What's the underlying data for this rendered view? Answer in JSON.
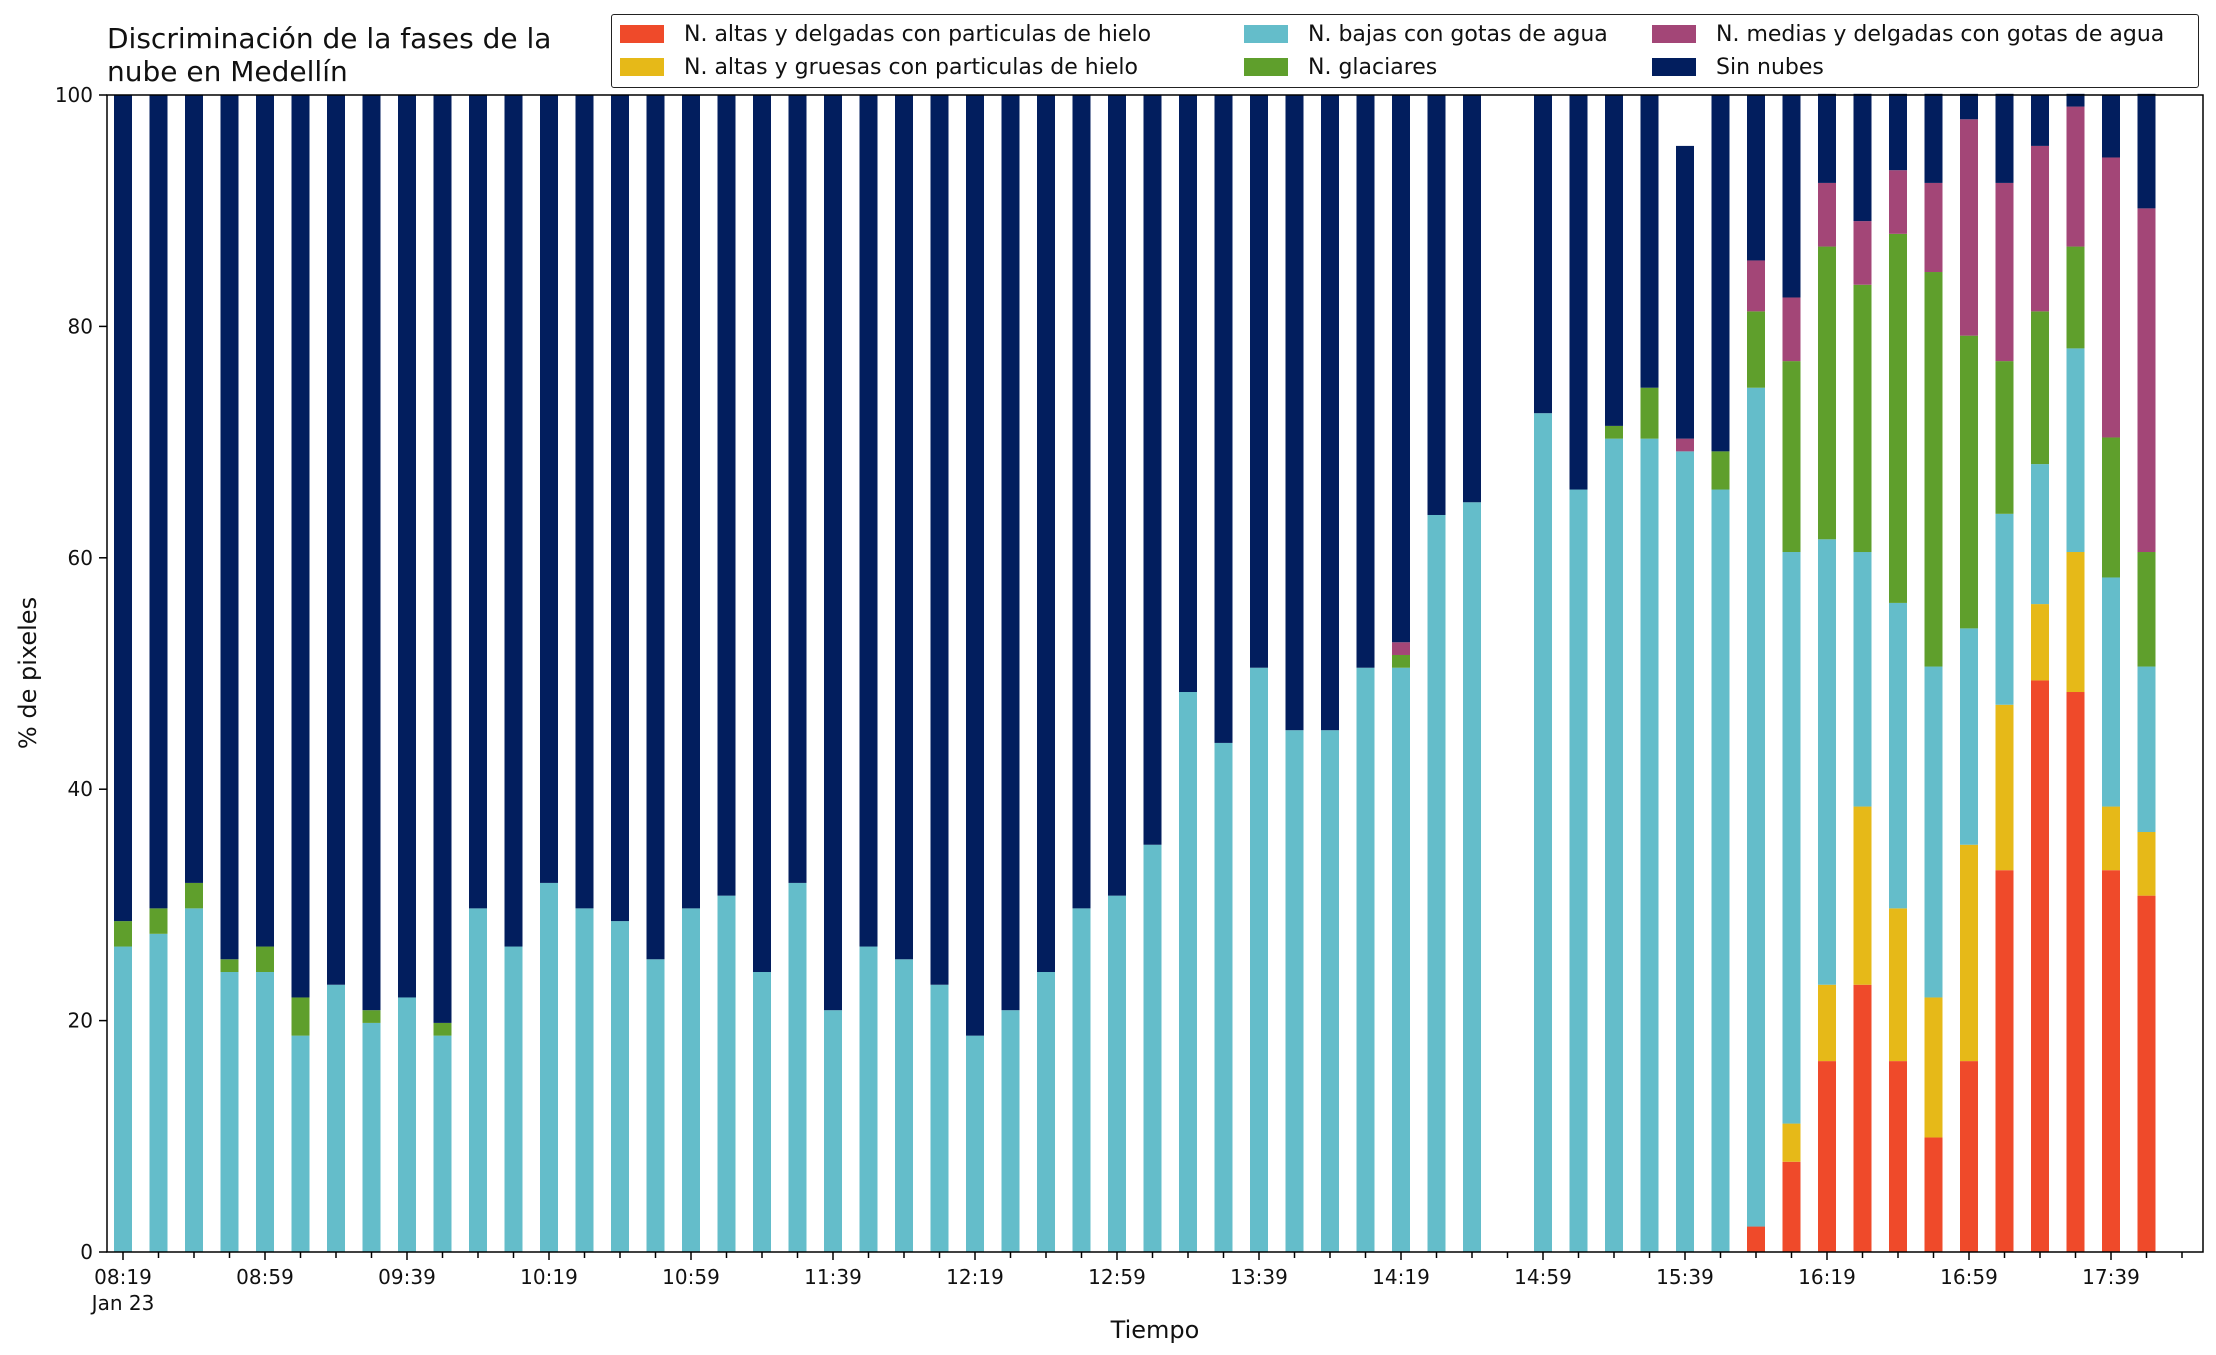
{
  "chart_data": {
    "type": "bar",
    "stacked": true,
    "title_lines": [
      "Discriminación de la fases de la",
      "nube en Medellín"
    ],
    "xlabel": "Tiempo",
    "ylabel": "% de pixeles",
    "ylim": [
      0,
      100
    ],
    "yticks": [
      0,
      20,
      40,
      60,
      80,
      100
    ],
    "grid": false,
    "legend_position": "top-right",
    "x_start": "08:19",
    "x_interval_minutes": 10,
    "xtick_labels": [
      "08:19",
      "08:59",
      "09:39",
      "10:19",
      "10:59",
      "11:39",
      "12:19",
      "12:59",
      "13:39",
      "14:19",
      "14:59",
      "15:39",
      "16:19",
      "16:59",
      "17:39"
    ],
    "xtick_sublabel": "Jan 23",
    "categories": [
      "08:19",
      "08:29",
      "08:39",
      "08:49",
      "08:59",
      "09:09",
      "09:19",
      "09:29",
      "09:39",
      "09:49",
      "09:59",
      "10:09",
      "10:19",
      "10:29",
      "10:39",
      "10:49",
      "10:59",
      "11:09",
      "11:19",
      "11:29",
      "11:39",
      "11:49",
      "11:59",
      "12:09",
      "12:19",
      "12:29",
      "12:39",
      "12:49",
      "12:59",
      "13:09",
      "13:19",
      "13:29",
      "13:39",
      "13:49",
      "13:59",
      "14:09",
      "14:19",
      "14:29",
      "14:39",
      "14:49",
      "14:59",
      "15:09",
      "15:19",
      "15:29",
      "15:39",
      "15:49",
      "15:59",
      "16:09",
      "16:19",
      "16:29",
      "16:39",
      "16:49",
      "16:59",
      "17:09",
      "17:19",
      "17:29",
      "17:39",
      "17:49"
    ],
    "series": [
      {
        "name": "N. altas y delgadas con particulas de hielo",
        "color": "#ef4a2a",
        "values": [
          0,
          0,
          0,
          0,
          0,
          0,
          0,
          0,
          0,
          0,
          0,
          0,
          0,
          0,
          0,
          0,
          0,
          0,
          0,
          0,
          0,
          0,
          0,
          0,
          0,
          0,
          0,
          0,
          0,
          0,
          0,
          0,
          0,
          0,
          0,
          0,
          0,
          0,
          0,
          0,
          0,
          0,
          0,
          0,
          0,
          0,
          2.2,
          7.8,
          16.5,
          23.1,
          16.5,
          9.9,
          16.5,
          33,
          49.4,
          48.4,
          33,
          30.8
        ]
      },
      {
        "name": "N. altas y gruesas con particulas de hielo",
        "color": "#e6b918",
        "values": [
          0,
          0,
          0,
          0,
          0,
          0,
          0,
          0,
          0,
          0,
          0,
          0,
          0,
          0,
          0,
          0,
          0,
          0,
          0,
          0,
          0,
          0,
          0,
          0,
          0,
          0,
          0,
          0,
          0,
          0,
          0,
          0,
          0,
          0,
          0,
          0,
          0,
          0,
          0,
          0,
          0,
          0,
          0,
          0,
          0,
          0,
          0,
          3.3,
          6.6,
          15.4,
          13.2,
          12.1,
          18.7,
          14.3,
          6.6,
          12.1,
          5.5,
          5.5
        ]
      },
      {
        "name": "N. bajas con gotas de agua",
        "color": "#64bdca",
        "values": [
          26.4,
          27.5,
          29.7,
          24.2,
          24.2,
          18.7,
          23.1,
          19.8,
          22,
          18.7,
          29.7,
          26.4,
          31.9,
          29.7,
          28.6,
          25.3,
          29.7,
          30.8,
          24.2,
          31.9,
          20.9,
          26.4,
          25.3,
          23.1,
          18.7,
          20.9,
          24.2,
          29.7,
          30.8,
          35.2,
          48.4,
          44,
          50.5,
          45.1,
          45.1,
          50.5,
          50.5,
          63.7,
          64.8,
          0,
          72.5,
          65.9,
          70.3,
          70.3,
          69.2,
          65.9,
          72.5,
          49.4,
          38.5,
          22,
          26.4,
          28.6,
          18.7,
          16.5,
          12.1,
          17.6,
          19.8,
          14.3
        ]
      },
      {
        "name": "N. glaciares",
        "color": "#5f9f2c",
        "values": [
          2.2,
          2.2,
          2.2,
          1.1,
          2.2,
          3.3,
          0,
          1.1,
          0,
          1.1,
          0,
          0,
          0,
          0,
          0,
          0,
          0,
          0,
          0,
          0,
          0,
          0,
          0,
          0,
          0,
          0,
          0,
          0,
          0,
          0,
          0,
          0,
          0,
          0,
          0,
          0,
          1.1,
          0,
          0,
          0,
          0,
          0,
          1.1,
          4.4,
          0,
          3.3,
          6.6,
          16.5,
          25.3,
          23.1,
          31.9,
          34.1,
          25.3,
          13.2,
          13.2,
          8.8,
          12.1,
          9.9
        ]
      },
      {
        "name": "N. medias y delgadas con gotas de agua",
        "color": "#a34677",
        "values": [
          0,
          0,
          0,
          0,
          0,
          0,
          0,
          0,
          0,
          0,
          0,
          0,
          0,
          0,
          0,
          0,
          0,
          0,
          0,
          0,
          0,
          0,
          0,
          0,
          0,
          0,
          0,
          0,
          0,
          0,
          0,
          0,
          0,
          0,
          0,
          0,
          1.1,
          0,
          0,
          0,
          0,
          0,
          0,
          0,
          1.1,
          0,
          4.4,
          5.5,
          5.5,
          5.5,
          5.5,
          7.7,
          18.7,
          15.4,
          14.3,
          12.1,
          24.2,
          29.7
        ]
      },
      {
        "name": "Sin nubes",
        "color": "#021e5e",
        "values": [
          71.4,
          70.3,
          68.1,
          74.7,
          73.6,
          78,
          76.9,
          79.1,
          78,
          80.2,
          70.3,
          73.6,
          68.1,
          70.3,
          71.4,
          74.7,
          70.3,
          69.2,
          75.8,
          68.1,
          79.1,
          73.6,
          74.7,
          76.9,
          81.3,
          79.1,
          75.8,
          70.3,
          69.2,
          64.8,
          51.6,
          56,
          49.5,
          54.9,
          54.9,
          49.5,
          47.3,
          36.3,
          35.2,
          0,
          27.5,
          34.1,
          28.6,
          25.3,
          25.3,
          30.8,
          14.3,
          17.5,
          7.7,
          11,
          6.6,
          7.7,
          2.2,
          7.7,
          4.4,
          1.1,
          5.4,
          9.9
        ]
      }
    ]
  }
}
